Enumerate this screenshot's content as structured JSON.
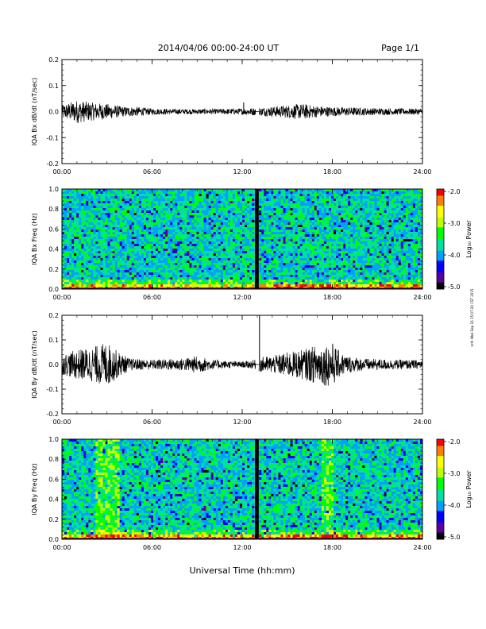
{
  "header": {
    "title": "2014/04/06  00:00-24:00 UT",
    "page": "Page 1/1"
  },
  "side_stamp": "mth Wed Sep 16 15:07:20 CST 2015",
  "xlabel": "Universal Time (hh:mm)",
  "colorbar": {
    "label": "Log₁₀ Power",
    "ticks": [
      "-2.0",
      "-3.0",
      "-4.0",
      "-5.0"
    ],
    "range": [
      -5.0,
      -2.0
    ],
    "colors": [
      "#000000",
      "#5a00a0",
      "#0000ff",
      "#00a0ff",
      "#00e0a0",
      "#00ff00",
      "#c0ff00",
      "#ffff00",
      "#ff8000",
      "#ff0000"
    ]
  },
  "chart_data": [
    {
      "type": "line",
      "ylabel": "IQA Bx dB/dt (nT/sec)",
      "ylim": [
        -0.2,
        0.2
      ],
      "yticks": [
        "0.2",
        "0.1",
        "0.0",
        "-0.1",
        "-0.2"
      ],
      "xticks": [
        "00:00",
        "06:00",
        "12:00",
        "18:00",
        "24:00"
      ],
      "xlim": [
        0,
        24
      ],
      "envelope": {
        "hours": [
          0,
          1,
          2,
          3,
          4,
          5,
          6,
          8,
          10,
          12,
          12.9,
          13.1,
          15,
          16,
          17,
          18,
          20,
          22,
          24
        ],
        "amplitude": [
          0.025,
          0.045,
          0.035,
          0.03,
          0.02,
          0.018,
          0.012,
          0.01,
          0.01,
          0.012,
          0.015,
          0.015,
          0.025,
          0.03,
          0.022,
          0.018,
          0.015,
          0.012,
          0.012
        ]
      },
      "gap_hours": [
        12.9,
        13.1
      ],
      "spikes": [
        {
          "hour": 12.1,
          "value": 0.035
        }
      ]
    },
    {
      "type": "heatmap",
      "ylabel": "IQA Bx Freq (Hz)",
      "ylim": [
        0.0,
        1.0
      ],
      "yticks": [
        "1.0",
        "0.8",
        "0.6",
        "0.4",
        "0.2",
        "0.0"
      ],
      "xticks": [
        "00:00",
        "06:00",
        "12:00",
        "18:00",
        "24:00"
      ],
      "xlim": [
        0,
        24
      ],
      "zlabel": "Log₁₀ Power",
      "zlim": [
        -5.0,
        -2.0
      ],
      "gap_hours": [
        12.85,
        13.1
      ],
      "enhanced_bands": []
    },
    {
      "type": "line",
      "ylabel": "IQA By dB/dt (nT/sec)",
      "ylim": [
        -0.2,
        0.2
      ],
      "yticks": [
        "0.2",
        "0.1",
        "0.0",
        "-0.1",
        "-0.2"
      ],
      "xticks": [
        "00:00",
        "06:00",
        "12:00",
        "18:00",
        "24:00"
      ],
      "xlim": [
        0,
        24
      ],
      "envelope": {
        "hours": [
          0,
          1,
          2,
          3,
          3.8,
          4.5,
          6,
          8,
          9,
          10,
          11,
          12,
          12.9,
          13.1,
          14,
          15,
          16,
          17,
          18,
          18.5,
          19,
          20,
          22,
          24
        ],
        "amplitude": [
          0.04,
          0.06,
          0.07,
          0.09,
          0.05,
          0.025,
          0.02,
          0.025,
          0.035,
          0.02,
          0.015,
          0.012,
          0.02,
          0.03,
          0.035,
          0.05,
          0.06,
          0.08,
          0.09,
          0.05,
          0.035,
          0.025,
          0.02,
          0.018
        ]
      },
      "gap_hours": [
        12.9,
        13.1
      ],
      "spikes": [
        {
          "hour": 13.15,
          "value": 0.2
        }
      ]
    },
    {
      "type": "heatmap",
      "ylabel": "IQA By Freq (Hz)",
      "ylim": [
        0.0,
        1.0
      ],
      "yticks": [
        "1.0",
        "0.8",
        "0.6",
        "0.4",
        "0.2",
        "0.0"
      ],
      "xticks": [
        "00:00",
        "06:00",
        "12:00",
        "18:00",
        "24:00"
      ],
      "xlim": [
        0,
        24
      ],
      "zlabel": "Log₁₀ Power",
      "zlim": [
        -5.0,
        -2.0
      ],
      "gap_hours": [
        12.85,
        13.1
      ],
      "enhanced_bands": [
        [
          2.3,
          3.8
        ],
        [
          17.3,
          18.1
        ]
      ]
    }
  ]
}
